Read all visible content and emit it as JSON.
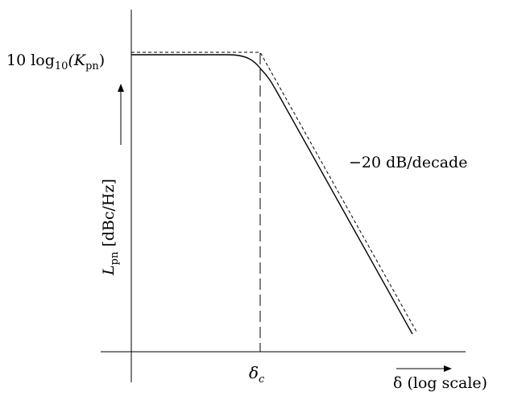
{
  "diagram": {
    "y_axis_title": {
      "symbol": "L",
      "subscript": "pn",
      "unit": "[dBc/Hz]"
    },
    "y_level_label": {
      "prefix": "10 log",
      "log_base": "10",
      "argument_open": "(K",
      "argument_subscript": "pn",
      "argument_close": ")"
    },
    "slope_label": "−20  dB/decade",
    "corner_label": {
      "symbol": "δ",
      "subscript": "c"
    },
    "x_axis_title": "δ (log scale)"
  }
}
